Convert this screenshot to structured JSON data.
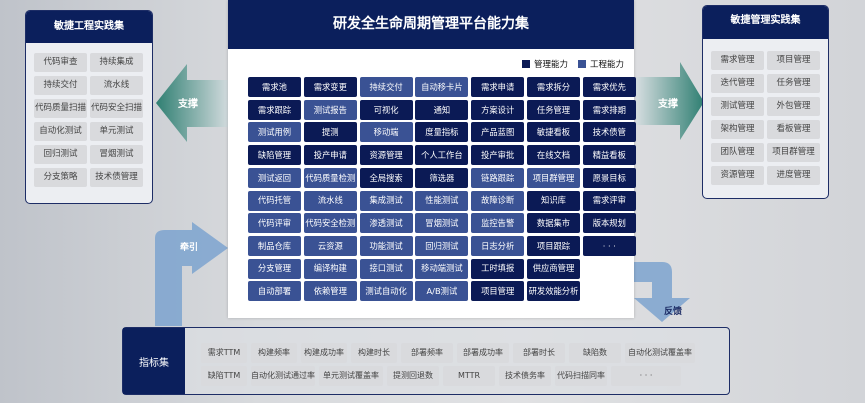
{
  "colors": {
    "management": "#0b1a55",
    "engineering": "#3a5294",
    "header": "#0b1f5c"
  },
  "center": {
    "title": "研发全生命周期管理平台能力集",
    "legend": [
      {
        "label": "管理能力",
        "type": "management"
      },
      {
        "label": "工程能力",
        "type": "engineering"
      }
    ],
    "rows": [
      [
        [
          "需求池",
          "m"
        ],
        [
          "需求变更",
          "m"
        ],
        [
          "持续交付",
          "e"
        ],
        [
          "自动移卡片",
          "e"
        ],
        [
          "需求申请",
          "m"
        ],
        [
          "需求拆分",
          "m"
        ],
        [
          "需求优先",
          "m"
        ]
      ],
      [
        [
          "需求跟踪",
          "m"
        ],
        [
          "测试报告",
          "e"
        ],
        [
          "可视化",
          "m"
        ],
        [
          "通知",
          "m"
        ],
        [
          "方案设计",
          "m"
        ],
        [
          "任务管理",
          "m"
        ],
        [
          "需求排期",
          "m"
        ]
      ],
      [
        [
          "测试用例",
          "e"
        ],
        [
          "提测",
          "m"
        ],
        [
          "移动端",
          "e"
        ],
        [
          "度量指标",
          "m"
        ],
        [
          "产品蓝图",
          "m"
        ],
        [
          "敏捷看板",
          "m"
        ],
        [
          "技术债管",
          "m"
        ]
      ],
      [
        [
          "缺陷管理",
          "m"
        ],
        [
          "投产申请",
          "m"
        ],
        [
          "资源管理",
          "m"
        ],
        [
          "个人工作台",
          "m"
        ],
        [
          "投产审批",
          "m"
        ],
        [
          "在线文档",
          "m"
        ],
        [
          "精益看板",
          "m"
        ]
      ],
      [
        [
          "测试返回",
          "e"
        ],
        [
          "代码质量检测",
          "e"
        ],
        [
          "全局搜索",
          "m"
        ],
        [
          "筛选器",
          "m"
        ],
        [
          "链路跟踪",
          "e"
        ],
        [
          "项目群管理",
          "e"
        ],
        [
          "愿景目标",
          "m"
        ]
      ],
      [
        [
          "代码托管",
          "e"
        ],
        [
          "流水线",
          "e"
        ],
        [
          "集成测试",
          "e"
        ],
        [
          "性能测试",
          "e"
        ],
        [
          "故障诊断",
          "e"
        ],
        [
          "知识库",
          "m"
        ],
        [
          "需求评审",
          "m"
        ]
      ],
      [
        [
          "代码评审",
          "e"
        ],
        [
          "代码安全检测",
          "e"
        ],
        [
          "渗透测试",
          "e"
        ],
        [
          "冒烟测试",
          "e"
        ],
        [
          "监控告警",
          "e"
        ],
        [
          "数据集市",
          "m"
        ],
        [
          "版本规划",
          "m"
        ]
      ],
      [
        [
          "制品仓库",
          "e"
        ],
        [
          "云资源",
          "e"
        ],
        [
          "功能测试",
          "e"
        ],
        [
          "回归测试",
          "e"
        ],
        [
          "日志分析",
          "e"
        ],
        [
          "项目跟踪",
          "m"
        ],
        [
          "· · ·",
          "m"
        ]
      ],
      [
        [
          "分支管理",
          "e"
        ],
        [
          "编译构建",
          "e"
        ],
        [
          "接口测试",
          "e"
        ],
        [
          "移动端测试",
          "e"
        ],
        [
          "工时填报",
          "m"
        ],
        [
          "供应商管理",
          "m"
        ]
      ],
      [
        [
          "自动部署",
          "e"
        ],
        [
          "依赖管理",
          "e"
        ],
        [
          "测试自动化",
          "e"
        ],
        [
          "A/B测试",
          "e"
        ],
        [
          "项目管理",
          "m"
        ],
        [
          "研发效能分析",
          "m"
        ]
      ]
    ]
  },
  "left": {
    "title": "敏捷工程实践集",
    "items": [
      "代码审查",
      "持续集成",
      "持续交付",
      "流水线",
      "代码质量扫描",
      "代码安全扫描",
      "自动化测试",
      "单元测试",
      "回归测试",
      "冒烟测试",
      "分支策略",
      "技术债管理"
    ],
    "arrow": "支撑"
  },
  "right": {
    "title": "敏捷管理实践集",
    "items": [
      "需求管理",
      "项目管理",
      "迭代管理",
      "任务管理",
      "测试管理",
      "外包管理",
      "架构管理",
      "看板管理",
      "团队管理",
      "项目群管理",
      "资源管理",
      "进度管理"
    ],
    "arrow": "支撑"
  },
  "flow": {
    "pull": "牵引",
    "feedback": "反馈"
  },
  "metrics": {
    "title": "指标集",
    "rows": [
      [
        "需求TTM",
        "构建频率",
        "构建成功率",
        "构建时长",
        "部署频率",
        "部署成功率",
        "部署时长",
        "缺陷数",
        "自动化测试覆盖率"
      ],
      [
        "缺陷TTM",
        "自动化测试通过率",
        "单元测试覆盖率",
        "提测回退数",
        "MTTR",
        "技术债务率",
        "代码扫描同率",
        "· · ·"
      ]
    ]
  }
}
